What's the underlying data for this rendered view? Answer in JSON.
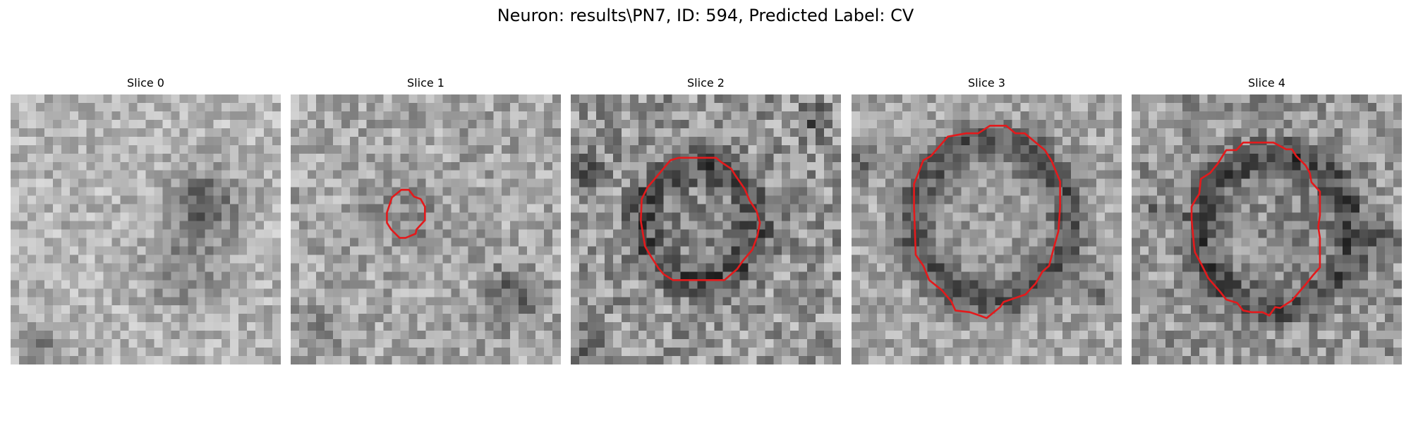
{
  "figure": {
    "title": "Neuron: results\\PN7, ID: 594, Predicted Label: CV"
  },
  "contour_color": "#e31a1c",
  "slices": [
    {
      "label": "Slice 0",
      "has_contour": false
    },
    {
      "label": "Slice 1",
      "has_contour": true
    },
    {
      "label": "Slice 2",
      "has_contour": true
    },
    {
      "label": "Slice 3",
      "has_contour": true
    },
    {
      "label": "Slice 4",
      "has_contour": true
    }
  ]
}
